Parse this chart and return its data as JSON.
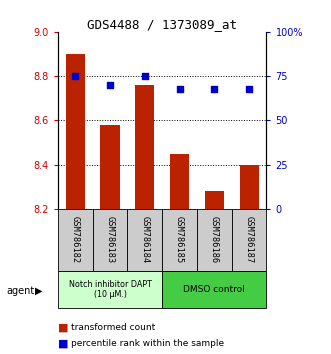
{
  "title": "GDS4488 / 1373089_at",
  "samples": [
    "GSM786182",
    "GSM786183",
    "GSM786184",
    "GSM786185",
    "GSM786186",
    "GSM786187"
  ],
  "bar_values": [
    8.9,
    8.58,
    8.76,
    8.45,
    8.28,
    8.4
  ],
  "dot_values": [
    75,
    70,
    75,
    68,
    68,
    68
  ],
  "ylim_left": [
    8.2,
    9.0
  ],
  "ylim_right": [
    0,
    100
  ],
  "yticks_left": [
    8.2,
    8.4,
    8.6,
    8.8,
    9.0
  ],
  "yticks_right": [
    0,
    25,
    50,
    75,
    100
  ],
  "yticklabels_right": [
    "0",
    "25",
    "50",
    "75",
    "100%"
  ],
  "bar_color": "#bb2200",
  "dot_color": "#0000cc",
  "bar_width": 0.55,
  "group1_label": "Notch inhibitor DAPT\n(10 μM.)",
  "group2_label": "DMSO control",
  "group1_color": "#ccffcc",
  "group2_color": "#44cc44",
  "legend_bar_label": "transformed count",
  "legend_dot_label": "percentile rank within the sample",
  "ylabel_left_color": "#cc0000",
  "ylabel_right_color": "#0000cc",
  "tick_area_bg": "#cccccc",
  "bar_bottom": 8.2,
  "grid_lines": [
    8.4,
    8.6,
    8.8
  ]
}
